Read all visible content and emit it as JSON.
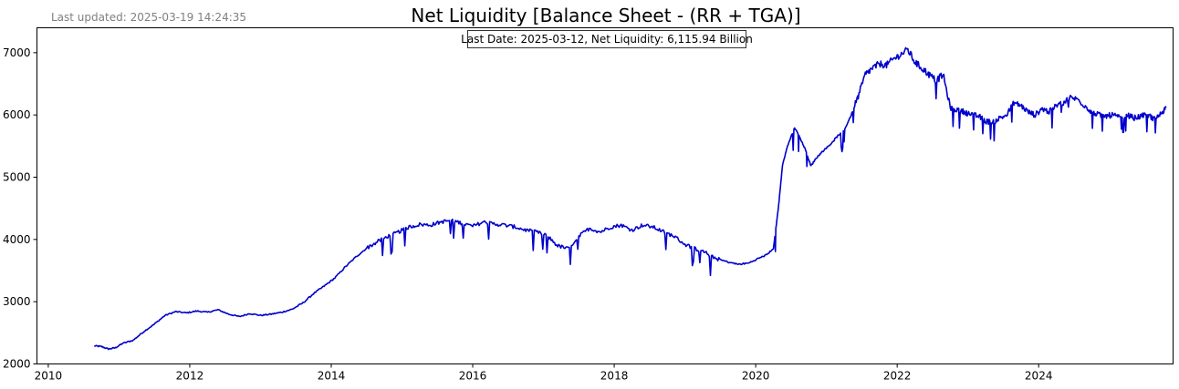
{
  "last_updated": "Last updated: 2025-03-19 14:24:35",
  "chart_data": {
    "type": "line",
    "title": "Net Liquidity [Balance Sheet - (RR + TGA)]",
    "xlabel": "",
    "ylabel": "",
    "xlim": [
      2009.84,
      2025.9
    ],
    "ylim": [
      2000,
      7400
    ],
    "x_ticks": [
      2010,
      2012,
      2014,
      2016,
      2018,
      2020,
      2022,
      2024
    ],
    "y_ticks": [
      2000,
      3000,
      4000,
      5000,
      6000,
      7000
    ],
    "grid": false,
    "legend": "none",
    "annotation": "Last Date: 2025-03-12, Net Liquidity: 6,115.94 Billion",
    "line_color": "#0000cc",
    "series": [
      {
        "points": [
          [
            2010.65,
            2290
          ],
          [
            2010.75,
            2280
          ],
          [
            2010.85,
            2240
          ],
          [
            2010.95,
            2260
          ],
          [
            2011.05,
            2330
          ],
          [
            2011.2,
            2380
          ],
          [
            2011.35,
            2520
          ],
          [
            2011.5,
            2640
          ],
          [
            2011.65,
            2780
          ],
          [
            2011.8,
            2840
          ],
          [
            2011.95,
            2820
          ],
          [
            2012.1,
            2850
          ],
          [
            2012.25,
            2830
          ],
          [
            2012.4,
            2870
          ],
          [
            2012.55,
            2800
          ],
          [
            2012.7,
            2760
          ],
          [
            2012.85,
            2810
          ],
          [
            2013.0,
            2780
          ],
          [
            2013.15,
            2800
          ],
          [
            2013.3,
            2830
          ],
          [
            2013.45,
            2880
          ],
          [
            2013.6,
            2980
          ],
          [
            2013.75,
            3130
          ],
          [
            2013.9,
            3250
          ],
          [
            2014.05,
            3380
          ],
          [
            2014.2,
            3560
          ],
          [
            2014.35,
            3720
          ],
          [
            2014.5,
            3860
          ],
          [
            2014.65,
            3960
          ],
          [
            2014.8,
            4050
          ],
          [
            2014.95,
            4120
          ],
          [
            2015.1,
            4200
          ],
          [
            2015.25,
            4240
          ],
          [
            2015.4,
            4230
          ],
          [
            2015.55,
            4280
          ],
          [
            2015.7,
            4310
          ],
          [
            2015.85,
            4260
          ],
          [
            2016.0,
            4210
          ],
          [
            2016.15,
            4280
          ],
          [
            2016.3,
            4250
          ],
          [
            2016.45,
            4230
          ],
          [
            2016.6,
            4200
          ],
          [
            2016.75,
            4150
          ],
          [
            2016.9,
            4120
          ],
          [
            2017.05,
            4060
          ],
          [
            2017.2,
            3900
          ],
          [
            2017.35,
            3850
          ],
          [
            2017.5,
            4050
          ],
          [
            2017.65,
            4180
          ],
          [
            2017.8,
            4120
          ],
          [
            2017.95,
            4200
          ],
          [
            2018.1,
            4230
          ],
          [
            2018.25,
            4150
          ],
          [
            2018.4,
            4230
          ],
          [
            2018.55,
            4200
          ],
          [
            2018.7,
            4120
          ],
          [
            2018.85,
            4050
          ],
          [
            2019.0,
            3920
          ],
          [
            2019.15,
            3850
          ],
          [
            2019.3,
            3780
          ],
          [
            2019.45,
            3690
          ],
          [
            2019.6,
            3640
          ],
          [
            2019.75,
            3600
          ],
          [
            2019.9,
            3620
          ],
          [
            2020.05,
            3700
          ],
          [
            2020.15,
            3750
          ],
          [
            2020.25,
            3850
          ],
          [
            2020.32,
            4500
          ],
          [
            2020.38,
            5200
          ],
          [
            2020.45,
            5500
          ],
          [
            2020.55,
            5800
          ],
          [
            2020.62,
            5650
          ],
          [
            2020.7,
            5450
          ],
          [
            2020.78,
            5180
          ],
          [
            2020.85,
            5300
          ],
          [
            2020.95,
            5420
          ],
          [
            2021.05,
            5520
          ],
          [
            2021.15,
            5650
          ],
          [
            2021.25,
            5750
          ],
          [
            2021.35,
            6000
          ],
          [
            2021.45,
            6300
          ],
          [
            2021.55,
            6650
          ],
          [
            2021.65,
            6750
          ],
          [
            2021.75,
            6820
          ],
          [
            2021.85,
            6800
          ],
          [
            2021.95,
            6900
          ],
          [
            2022.05,
            6970
          ],
          [
            2022.15,
            7050
          ],
          [
            2022.25,
            6850
          ],
          [
            2022.35,
            6750
          ],
          [
            2022.45,
            6650
          ],
          [
            2022.55,
            6550
          ],
          [
            2022.65,
            6650
          ],
          [
            2022.75,
            6120
          ],
          [
            2022.85,
            6080
          ],
          [
            2022.95,
            6050
          ],
          [
            2023.05,
            6000
          ],
          [
            2023.15,
            5980
          ],
          [
            2023.25,
            5900
          ],
          [
            2023.35,
            5880
          ],
          [
            2023.45,
            5950
          ],
          [
            2023.55,
            6000
          ],
          [
            2023.65,
            6200
          ],
          [
            2023.75,
            6150
          ],
          [
            2023.85,
            6050
          ],
          [
            2023.95,
            6000
          ],
          [
            2024.05,
            6100
          ],
          [
            2024.15,
            6050
          ],
          [
            2024.25,
            6150
          ],
          [
            2024.35,
            6200
          ],
          [
            2024.45,
            6280
          ],
          [
            2024.55,
            6250
          ],
          [
            2024.65,
            6150
          ],
          [
            2024.75,
            6050
          ],
          [
            2024.85,
            6000
          ],
          [
            2024.95,
            5980
          ],
          [
            2025.05,
            6000
          ],
          [
            2025.15,
            5950
          ],
          [
            2025.25,
            6000
          ],
          [
            2025.35,
            5950
          ],
          [
            2025.45,
            5980
          ],
          [
            2025.55,
            6000
          ],
          [
            2025.65,
            5920
          ],
          [
            2025.75,
            6050
          ],
          [
            2025.8,
            6116
          ]
        ]
      }
    ]
  }
}
